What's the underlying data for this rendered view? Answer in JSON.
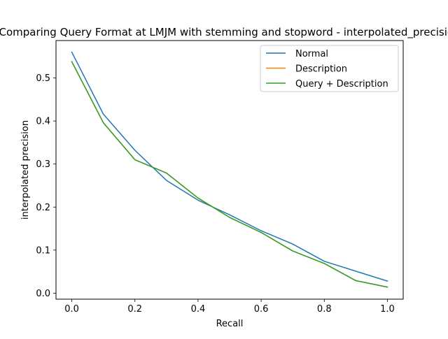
{
  "chart_data": {
    "type": "line",
    "title": "Comparing Query Format at LMJM with stemming and stopword - interpolated_precision",
    "xlabel": "Recall",
    "ylabel": "interpolated precision",
    "x": [
      0.0,
      0.1,
      0.2,
      0.3,
      0.4,
      0.5,
      0.6,
      0.7,
      0.8,
      0.9,
      1.0
    ],
    "xlim": [
      -0.05,
      1.05
    ],
    "ylim": [
      -0.014,
      0.587
    ],
    "xticks": [
      0.0,
      0.2,
      0.4,
      0.6,
      0.8,
      1.0
    ],
    "xtick_labels": [
      "0.0",
      "0.2",
      "0.4",
      "0.6",
      "0.8",
      "1.0"
    ],
    "yticks": [
      0.0,
      0.1,
      0.2,
      0.3,
      0.4,
      0.5
    ],
    "ytick_labels": [
      "0.0",
      "0.1",
      "0.2",
      "0.3",
      "0.4",
      "0.5"
    ],
    "grid": false,
    "legend_position": "top-right",
    "series": [
      {
        "name": "Normal",
        "color": "#1f77b4",
        "values": [
          0.56,
          0.416,
          0.332,
          0.262,
          0.216,
          0.182,
          0.145,
          0.114,
          0.074,
          0.051,
          0.028
        ]
      },
      {
        "name": "Description",
        "color": "#ff7f0e",
        "values": [
          0.538,
          0.396,
          0.31,
          0.279,
          0.221,
          0.176,
          0.141,
          0.098,
          0.069,
          0.029,
          0.014
        ]
      },
      {
        "name": "Query + Description",
        "color": "#2ca02c",
        "values": [
          0.538,
          0.396,
          0.31,
          0.279,
          0.221,
          0.176,
          0.141,
          0.098,
          0.069,
          0.029,
          0.014
        ]
      }
    ]
  }
}
